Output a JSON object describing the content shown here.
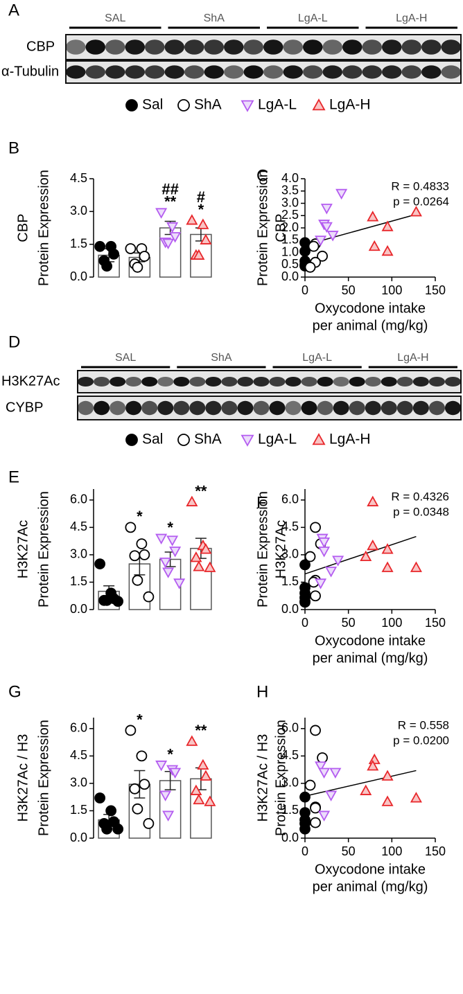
{
  "blots": [
    {
      "panel": "A",
      "groups": [
        "SAL",
        "ShA",
        "LgA-L",
        "LgA-H"
      ],
      "rows": [
        "CBP",
        "α-Tubulin"
      ],
      "legend": [
        "Sal",
        "ShA",
        "LgA-L",
        "LgA-H"
      ]
    },
    {
      "panel": "D",
      "groups": [
        "SAL",
        "ShA",
        "LgA-L",
        "LgA-H"
      ],
      "rows": [
        "H3K27Ac",
        "CYBP"
      ],
      "legend": [
        "Sal",
        "ShA",
        "LgA-L",
        "LgA-H"
      ]
    }
  ],
  "chart_data": [
    {
      "type": "bar",
      "panel": "B",
      "ylabel": [
        "CBP",
        "Protein Expression"
      ],
      "categories": [
        null,
        null,
        null,
        null
      ],
      "values": [
        1.0,
        0.9,
        2.25,
        1.95
      ],
      "errors": [
        0.3,
        0.2,
        0.3,
        0.3
      ],
      "points": [
        [
          1.4,
          1.4,
          1.05,
          0.75,
          0.5
        ],
        [
          1.3,
          1.3,
          0.95,
          0.6,
          0.45
        ],
        [
          2.95,
          2.3,
          1.85,
          1.6,
          1.55
        ],
        [
          2.6,
          2.4,
          1.7,
          1.0,
          1.0
        ]
      ],
      "annotations": [
        [],
        [],
        [
          "##",
          "**"
        ],
        [
          "#",
          "*"
        ]
      ],
      "colors": [
        "#000000",
        "#000000",
        "#b45cf0",
        "#e8262a"
      ],
      "fills": [
        "#000000",
        "#ffffff",
        "#ecdcfb",
        "#f9c4c4"
      ],
      "markers": [
        "circle",
        "circle",
        "triangle-down",
        "triangle-up"
      ],
      "ylim": [
        0,
        4.5
      ],
      "yticks": [
        {
          "value": 0,
          "label": "0.0"
        },
        1.5,
        {
          "value": 3,
          "label": "3.0"
        },
        4.5
      ]
    },
    {
      "type": "scatter",
      "panel": "C",
      "ylabel": [
        "Protein Expression",
        "CBP"
      ],
      "xlabel": [
        "Oxycodone intake",
        "per animal (mg/kg)"
      ],
      "series": [
        {
          "color": "#000000",
          "fill": "#000000",
          "marker": "circle",
          "x": [
            0,
            0,
            0,
            0,
            0
          ],
          "y": [
            1.4,
            1.05,
            0.65,
            0.5,
            0.45
          ]
        },
        {
          "color": "#000000",
          "fill": "#ffffff",
          "marker": "circle",
          "x": [
            12,
            10,
            20,
            12,
            6
          ],
          "y": [
            1.35,
            1.25,
            0.85,
            0.6,
            0.4
          ]
        },
        {
          "color": "#b45cf0",
          "fill": "#ecdcfb",
          "marker": "triangle-down",
          "x": [
            42,
            25,
            22,
            25,
            32,
            18
          ],
          "y": [
            3.4,
            2.8,
            2.15,
            2.05,
            1.7,
            1.5
          ]
        },
        {
          "color": "#e8262a",
          "fill": "#f9c4c4",
          "marker": "triangle-up",
          "x": [
            128,
            78,
            95,
            80,
            95
          ],
          "y": [
            2.65,
            2.45,
            2.05,
            1.25,
            1.05
          ]
        }
      ],
      "fit": {
        "x": [
          0,
          128
        ],
        "y": [
          1.3,
          2.55
        ]
      },
      "annotations": [
        "R = 0.4833",
        "p = 0.0264"
      ],
      "xlim": [
        0,
        150
      ],
      "xticks": [
        0,
        50,
        100,
        150
      ],
      "ylim": [
        0,
        4
      ],
      "yticks": [
        {
          "value": 0,
          "label": "0.0"
        },
        0.5,
        {
          "value": 1,
          "label": "1.0"
        },
        1.5,
        {
          "value": 2,
          "label": "2.0"
        },
        2.5,
        {
          "value": 3,
          "label": "3.0"
        },
        3.5,
        {
          "value": 4,
          "label": "4.0"
        }
      ]
    },
    {
      "type": "bar",
      "panel": "E",
      "ylabel": [
        "H3K27Ac",
        "Protein Expression"
      ],
      "categories": [
        null,
        null,
        null,
        null
      ],
      "values": [
        1.0,
        2.5,
        2.75,
        3.35
      ],
      "errors": [
        0.3,
        0.6,
        0.4,
        0.55
      ],
      "points": [
        [
          2.5,
          0.9,
          0.6,
          0.5,
          0.5,
          0.45
        ],
        [
          4.5,
          3.6,
          3.0,
          2.95,
          1.6,
          0.7
        ],
        [
          3.9,
          3.8,
          3.2,
          2.6,
          2.05,
          1.45
        ],
        [
          5.9,
          3.5,
          3.3,
          2.85,
          2.35,
          2.3
        ]
      ],
      "annotations": [
        [],
        [
          "*"
        ],
        [
          "*"
        ],
        [
          "**"
        ]
      ],
      "colors": [
        "#000000",
        "#000000",
        "#b45cf0",
        "#e8262a"
      ],
      "fills": [
        "#000000",
        "#ffffff",
        "#ecdcfb",
        "#f9c4c4"
      ],
      "markers": [
        "circle",
        "circle",
        "triangle-down",
        "triangle-up"
      ],
      "ylim": [
        0,
        6.6
      ],
      "yticks": [
        {
          "value": 0,
          "label": "0.0"
        },
        1.5,
        {
          "value": 3,
          "label": "3.0"
        },
        4.5,
        {
          "value": 6,
          "label": "6.0"
        }
      ]
    },
    {
      "type": "scatter",
      "panel": "F",
      "ylabel": [
        "Protein Expression",
        "H3K27Ac"
      ],
      "xlabel": [
        "Oxycodone intake",
        "per animal (mg/kg)"
      ],
      "series": [
        {
          "color": "#000000",
          "fill": "#000000",
          "marker": "circle",
          "x": [
            0,
            0,
            0,
            0,
            0,
            0
          ],
          "y": [
            2.45,
            1.2,
            0.9,
            0.65,
            0.45,
            0.4
          ]
        },
        {
          "color": "#000000",
          "fill": "#ffffff",
          "marker": "circle",
          "x": [
            12,
            18,
            6,
            12,
            10,
            12
          ],
          "y": [
            4.5,
            3.6,
            2.9,
            1.6,
            1.5,
            0.75
          ]
        },
        {
          "color": "#b45cf0",
          "fill": "#ecdcfb",
          "marker": "triangle-down",
          "x": [
            20,
            22,
            22,
            38,
            30,
            18
          ],
          "y": [
            3.9,
            3.7,
            3.2,
            2.7,
            2.1,
            1.45
          ]
        },
        {
          "color": "#e8262a",
          "fill": "#f9c4c4",
          "marker": "triangle-up",
          "x": [
            78,
            78,
            95,
            70,
            95,
            128
          ],
          "y": [
            5.9,
            3.5,
            3.3,
            2.9,
            2.3,
            2.3
          ]
        }
      ],
      "fit": {
        "x": [
          0,
          128
        ],
        "y": [
          1.95,
          4.0
        ]
      },
      "annotations": [
        "R = 0.4326",
        "p = 0.0348"
      ],
      "xlim": [
        0,
        150
      ],
      "xticks": [
        0,
        50,
        100,
        150
      ],
      "ylim": [
        0,
        6.6
      ],
      "yticks": [
        {
          "value": 0,
          "label": "0.0"
        },
        1.5,
        {
          "value": 3,
          "label": "3.0"
        },
        4.5,
        {
          "value": 6,
          "label": "6.0"
        }
      ]
    },
    {
      "type": "bar",
      "panel": "G",
      "ylabel": [
        "H3K27Ac / H3",
        "Protein Expression"
      ],
      "categories": [
        null,
        null,
        null,
        null
      ],
      "values": [
        1.0,
        2.95,
        3.15,
        3.25
      ],
      "errors": [
        0.3,
        0.75,
        0.5,
        0.6
      ],
      "points": [
        [
          2.2,
          1.5,
          0.9,
          0.8,
          0.5,
          0.5
        ],
        [
          5.9,
          4.5,
          2.95,
          2.7,
          1.6,
          0.8
        ],
        [
          4.0,
          3.75,
          3.6,
          2.35,
          1.25
        ],
        [
          5.3,
          4.0,
          3.4,
          2.6,
          2.1,
          2.0
        ]
      ],
      "annotations": [
        [],
        [
          "*"
        ],
        [
          "*"
        ],
        [
          "**"
        ]
      ],
      "colors": [
        "#000000",
        "#000000",
        "#b45cf0",
        "#e8262a"
      ],
      "fills": [
        "#000000",
        "#ffffff",
        "#ecdcfb",
        "#f9c4c4"
      ],
      "markers": [
        "circle",
        "circle",
        "triangle-down",
        "triangle-up"
      ],
      "ylim": [
        0,
        6.6
      ],
      "yticks": [
        {
          "value": 0,
          "label": "0.0"
        },
        1.5,
        {
          "value": 3,
          "label": "3.0"
        },
        4.5,
        {
          "value": 6,
          "label": "6.0"
        }
      ]
    },
    {
      "type": "scatter",
      "panel": "H",
      "ylabel": [
        "H3K27Ac / H3",
        "Protein Expression"
      ],
      "xlabel": [
        "Oxycodone intake",
        "per animal (mg/kg)"
      ],
      "series": [
        {
          "color": "#000000",
          "fill": "#000000",
          "marker": "circle",
          "x": [
            0,
            0,
            0,
            0,
            0
          ],
          "y": [
            2.25,
            1.4,
            1.0,
            0.8,
            0.5
          ]
        },
        {
          "color": "#000000",
          "fill": "#ffffff",
          "marker": "circle",
          "x": [
            12,
            20,
            6,
            12,
            12,
            12
          ],
          "y": [
            5.9,
            4.4,
            2.9,
            1.7,
            1.65,
            0.85
          ]
        },
        {
          "color": "#b45cf0",
          "fill": "#ecdcfb",
          "marker": "triangle-down",
          "x": [
            18,
            22,
            35,
            30,
            22
          ],
          "y": [
            3.95,
            3.6,
            3.6,
            2.35,
            1.25
          ]
        },
        {
          "color": "#e8262a",
          "fill": "#f9c4c4",
          "marker": "triangle-up",
          "x": [
            80,
            78,
            95,
            70,
            95,
            128
          ],
          "y": [
            4.3,
            3.95,
            3.4,
            2.6,
            2.0,
            2.2
          ]
        }
      ],
      "fit": {
        "x": [
          0,
          128
        ],
        "y": [
          2.3,
          3.7
        ]
      },
      "annotations": [
        "R = 0.558",
        "p = 0.0200"
      ],
      "xlim": [
        0,
        150
      ],
      "xticks": [
        0,
        50,
        100,
        150
      ],
      "ylim": [
        0,
        6.6
      ],
      "yticks": [
        {
          "value": 0,
          "label": "0.0"
        },
        1.5,
        {
          "value": 3,
          "label": "3.0"
        },
        4.5,
        {
          "value": 6,
          "label": "6.0"
        }
      ]
    }
  ]
}
